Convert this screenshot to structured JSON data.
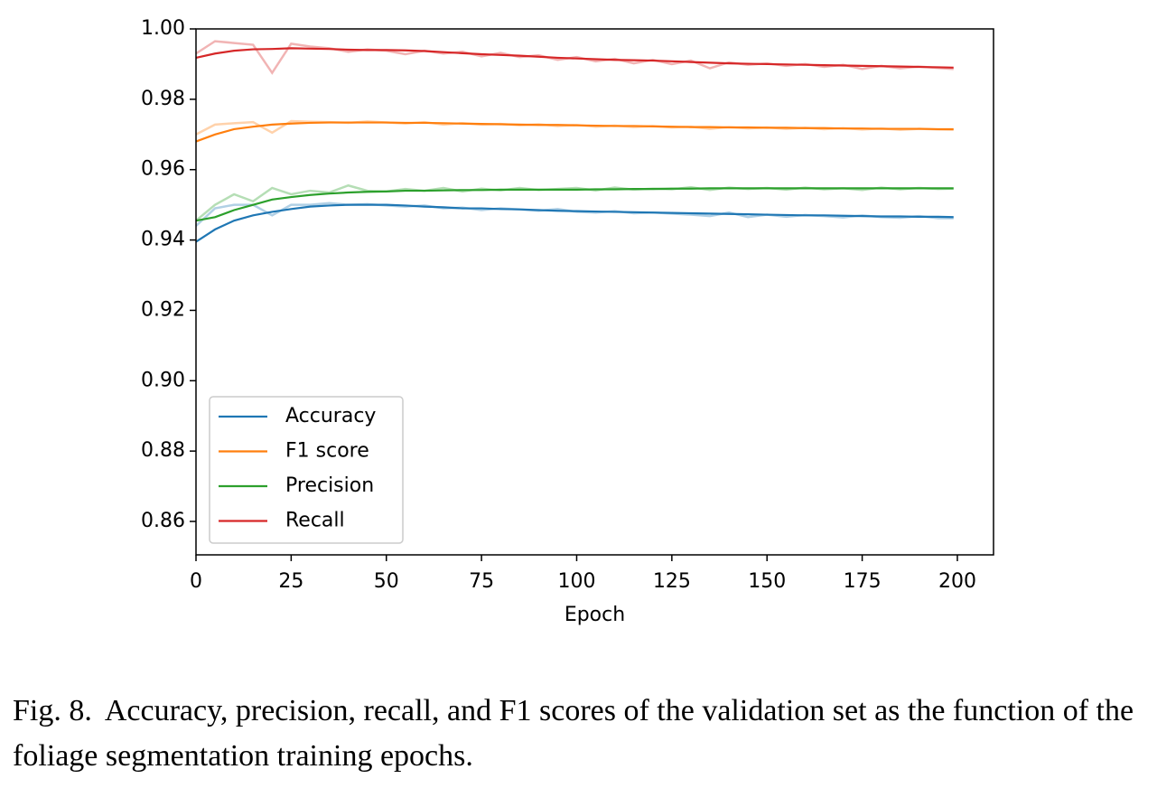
{
  "chart_data": {
    "type": "line",
    "xlabel": "Epoch",
    "x": [
      0,
      5,
      10,
      15,
      20,
      25,
      30,
      35,
      40,
      45,
      50,
      55,
      60,
      65,
      70,
      75,
      80,
      85,
      90,
      95,
      100,
      105,
      110,
      115,
      120,
      125,
      130,
      135,
      140,
      145,
      150,
      155,
      160,
      165,
      170,
      175,
      180,
      185,
      190,
      195,
      199
    ],
    "series": [
      {
        "name": "Accuracy",
        "color": "#1f77b4",
        "values": [
          0.9395,
          0.943,
          0.9455,
          0.947,
          0.948,
          0.9488,
          0.9495,
          0.9498,
          0.95,
          0.95,
          0.95,
          0.9498,
          0.9495,
          0.9493,
          0.949,
          0.949,
          0.9488,
          0.9487,
          0.9485,
          0.9483,
          0.9482,
          0.9481,
          0.948,
          0.9479,
          0.9478,
          0.9477,
          0.9476,
          0.9475,
          0.9474,
          0.9473,
          0.9472,
          0.9471,
          0.947,
          0.947,
          0.9469,
          0.9468,
          0.9467,
          0.9467,
          0.9466,
          0.9466,
          0.9465
        ],
        "raw_values": [
          0.944,
          0.949,
          0.95,
          0.95,
          0.947,
          0.95,
          0.95,
          0.9505,
          0.95,
          0.9502,
          0.9498,
          0.9495,
          0.9498,
          0.949,
          0.9492,
          0.9485,
          0.949,
          0.9487,
          0.9483,
          0.9488,
          0.948,
          0.9478,
          0.9482,
          0.9476,
          0.9478,
          0.9475,
          0.9472,
          0.9468,
          0.9478,
          0.9465,
          0.9472,
          0.9466,
          0.9471,
          0.9468,
          0.9464,
          0.947,
          0.9465,
          0.9463,
          0.9468,
          0.9462,
          0.9462
        ]
      },
      {
        "name": "F1 score",
        "color": "#ff7f0e",
        "values": [
          0.968,
          0.97,
          0.9715,
          0.9722,
          0.9728,
          0.9731,
          0.9733,
          0.9734,
          0.9734,
          0.9734,
          0.9734,
          0.9733,
          0.9733,
          0.9732,
          0.9731,
          0.973,
          0.9729,
          0.9728,
          0.9727,
          0.9727,
          0.9726,
          0.9725,
          0.9724,
          0.9724,
          0.9723,
          0.9722,
          0.9721,
          0.9721,
          0.972,
          0.972,
          0.9719,
          0.9719,
          0.9718,
          0.9718,
          0.9717,
          0.9717,
          0.9716,
          0.9716,
          0.9716,
          0.9715,
          0.9715
        ],
        "raw_values": [
          0.97,
          0.9728,
          0.9732,
          0.9735,
          0.9705,
          0.9738,
          0.9736,
          0.9735,
          0.9733,
          0.9737,
          0.9734,
          0.9731,
          0.9735,
          0.9728,
          0.9732,
          0.9728,
          0.973,
          0.9726,
          0.9729,
          0.9724,
          0.9727,
          0.9722,
          0.9725,
          0.9721,
          0.9724,
          0.972,
          0.9722,
          0.9716,
          0.9721,
          0.9717,
          0.972,
          0.9716,
          0.9719,
          0.9715,
          0.9718,
          0.9714,
          0.9717,
          0.9713,
          0.9716,
          0.9714,
          0.9713
        ]
      },
      {
        "name": "Precision",
        "color": "#2ca02c",
        "values": [
          0.9455,
          0.9465,
          0.9485,
          0.95,
          0.9515,
          0.9522,
          0.9528,
          0.9532,
          0.9535,
          0.9537,
          0.9538,
          0.954,
          0.954,
          0.9541,
          0.9542,
          0.9542,
          0.9543,
          0.9543,
          0.9543,
          0.9543,
          0.9543,
          0.9544,
          0.9544,
          0.9545,
          0.9545,
          0.9546,
          0.9546,
          0.9547,
          0.9547,
          0.9547,
          0.9547,
          0.9547,
          0.9547,
          0.9547,
          0.9547,
          0.9547,
          0.9547,
          0.9547,
          0.9547,
          0.9547,
          0.9547
        ],
        "raw_values": [
          0.9455,
          0.95,
          0.953,
          0.951,
          0.9548,
          0.953,
          0.954,
          0.9535,
          0.9555,
          0.954,
          0.9538,
          0.9545,
          0.954,
          0.9548,
          0.9538,
          0.9546,
          0.9541,
          0.9548,
          0.9542,
          0.9545,
          0.9548,
          0.9541,
          0.9549,
          0.9543,
          0.9546,
          0.9544,
          0.955,
          0.9542,
          0.9549,
          0.9545,
          0.9548,
          0.9543,
          0.9549,
          0.9544,
          0.9547,
          0.9542,
          0.9549,
          0.9544,
          0.9548,
          0.9545,
          0.9546
        ]
      },
      {
        "name": "Recall",
        "color": "#d62728",
        "values": [
          0.9918,
          0.993,
          0.9938,
          0.9942,
          0.9943,
          0.9945,
          0.9944,
          0.9943,
          0.9941,
          0.994,
          0.994,
          0.9939,
          0.9937,
          0.9934,
          0.9931,
          0.9928,
          0.9926,
          0.9924,
          0.9921,
          0.9918,
          0.9916,
          0.9914,
          0.9912,
          0.9911,
          0.991,
          0.9908,
          0.9906,
          0.9904,
          0.9902,
          0.9901,
          0.99,
          0.9899,
          0.9898,
          0.9897,
          0.9896,
          0.9895,
          0.9894,
          0.9893,
          0.9892,
          0.9891,
          0.989
        ],
        "raw_values": [
          0.993,
          0.9965,
          0.996,
          0.9955,
          0.9875,
          0.9958,
          0.995,
          0.9945,
          0.9935,
          0.9942,
          0.9938,
          0.9928,
          0.9938,
          0.993,
          0.9935,
          0.9922,
          0.9932,
          0.992,
          0.9925,
          0.9912,
          0.992,
          0.9908,
          0.9915,
          0.9902,
          0.9912,
          0.99,
          0.991,
          0.9888,
          0.9905,
          0.9898,
          0.9902,
          0.9895,
          0.99,
          0.9892,
          0.9898,
          0.9886,
          0.9895,
          0.9888,
          0.9893,
          0.9889,
          0.9886
        ]
      }
    ],
    "xlim": [
      0,
      209.5
    ],
    "xticks": [
      0,
      25,
      50,
      75,
      100,
      125,
      150,
      175,
      200
    ],
    "ylim": [
      0.8505,
      1.0
    ],
    "yticks": [
      0.86,
      0.88,
      {
        "value": 0.9,
        "label": "0.90"
      },
      0.92,
      0.94,
      0.96,
      0.98,
      {
        "value": 1.0,
        "label": "1.00"
      }
    ],
    "grid": false,
    "legend": "lower left"
  },
  "caption": {
    "label": "Fig. 8.",
    "text": "Accuracy, precision, recall, and F1 scores of the validation set as the function of the foliage segmentation training epochs."
  }
}
